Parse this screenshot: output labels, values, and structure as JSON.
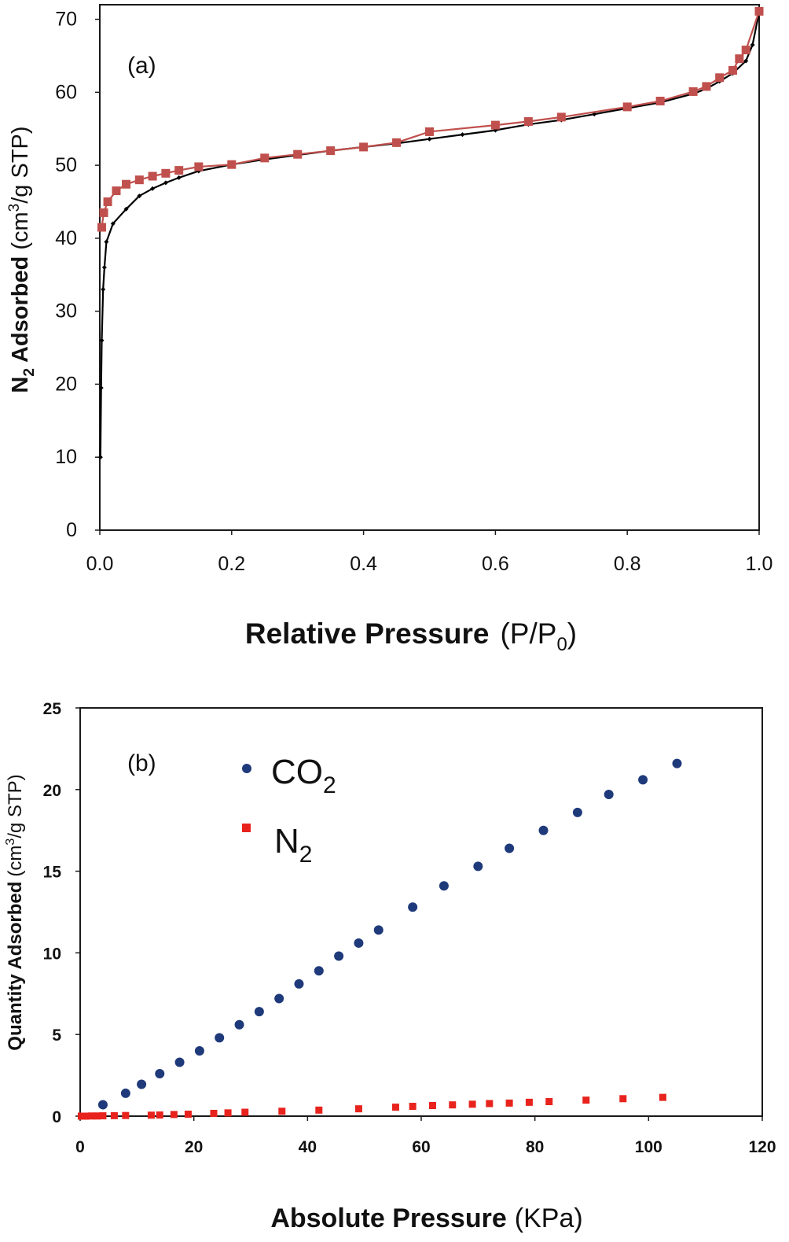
{
  "chart_data": [
    {
      "type": "line",
      "panel_label": "(a)",
      "xlabel": "Relative Pressure",
      "xlabel_unit": "(P/P",
      "xlabel_unit_sub": "0",
      "xlabel_unit_end": ")",
      "ylabel_main": "N",
      "ylabel_sub": "2",
      "ylabel_bold_rest": " Adsorbed",
      "ylabel_unit": " (cm",
      "ylabel_unit_sup": "3",
      "ylabel_unit_end": "/g STP)",
      "xlim": [
        0,
        1.0
      ],
      "ylim": [
        0,
        72
      ],
      "xticks": [
        "0.0",
        "0.2",
        "0.4",
        "0.6",
        "0.8",
        "1.0"
      ],
      "yticks": [
        "0",
        "10",
        "20",
        "30",
        "40",
        "50",
        "60",
        "70"
      ],
      "series": [
        {
          "role": "adsorption",
          "color": "#000000",
          "marker": "diamond",
          "x": [
            0.001,
            0.002,
            0.003,
            0.005,
            0.007,
            0.01,
            0.02,
            0.04,
            0.06,
            0.08,
            0.1,
            0.12,
            0.15,
            0.2,
            0.25,
            0.3,
            0.35,
            0.4,
            0.45,
            0.5,
            0.55,
            0.6,
            0.65,
            0.7,
            0.75,
            0.8,
            0.85,
            0.9,
            0.92,
            0.94,
            0.96,
            0.98,
            0.99,
            1.0
          ],
          "y": [
            10,
            19.5,
            26,
            33,
            36,
            39.5,
            42,
            44,
            45.8,
            46.8,
            47.6,
            48.3,
            49.2,
            50.1,
            50.8,
            51.4,
            52,
            52.5,
            53,
            53.6,
            54.2,
            54.8,
            55.6,
            56.2,
            57,
            57.8,
            58.6,
            59.8,
            60.5,
            61.5,
            62.6,
            64.3,
            66.5,
            71
          ]
        },
        {
          "role": "desorption",
          "color": "#C0504D",
          "marker": "square",
          "x": [
            1.0,
            0.98,
            0.97,
            0.96,
            0.94,
            0.92,
            0.9,
            0.85,
            0.8,
            0.7,
            0.65,
            0.6,
            0.5,
            0.45,
            0.4,
            0.35,
            0.3,
            0.25,
            0.2,
            0.15,
            0.12,
            0.1,
            0.08,
            0.06,
            0.04,
            0.025,
            0.012,
            0.006,
            0.003
          ],
          "y": [
            71.1,
            65.8,
            64.6,
            63,
            62,
            60.8,
            60.1,
            58.8,
            58,
            56.6,
            56,
            55.5,
            54.6,
            53.1,
            52.5,
            52,
            51.5,
            51,
            50.1,
            49.8,
            49.3,
            48.9,
            48.5,
            48,
            47.4,
            46.5,
            45,
            43.5,
            41.5
          ]
        }
      ]
    },
    {
      "type": "scatter",
      "panel_label": "(b)",
      "xlabel": "Absolute Pressure",
      "xlabel_unit": "(KPa)",
      "ylabel_bold": "Quantity Adsorbed",
      "ylabel_unit": "(cm",
      "ylabel_unit_sup": "3",
      "ylabel_unit_end": "/g STP)",
      "xlim": [
        0,
        120
      ],
      "ylim": [
        0,
        25
      ],
      "xticks": [
        "0",
        "20",
        "40",
        "60",
        "80",
        "100",
        "120"
      ],
      "yticks": [
        "0",
        "5",
        "10",
        "15",
        "20",
        "25"
      ],
      "legend_position": "top-left",
      "series": [
        {
          "name": "CO",
          "name_sub": "2",
          "color": "#1F3A7A",
          "marker": "circle",
          "x": [
            4,
            8,
            10.8,
            14,
            17.5,
            21,
            24.5,
            28,
            31.5,
            35,
            38.5,
            42,
            45.5,
            49,
            52.5,
            58.5,
            64,
            70,
            75.5,
            81.5,
            87.5,
            93,
            99,
            105
          ],
          "y": [
            0.7,
            1.4,
            1.95,
            2.6,
            3.3,
            4.0,
            4.8,
            5.6,
            6.4,
            7.2,
            8.1,
            8.9,
            9.8,
            10.6,
            11.4,
            12.8,
            14.1,
            15.3,
            16.4,
            17.5,
            18.6,
            19.7,
            20.6,
            21.6
          ]
        },
        {
          "name": "N",
          "name_sub": "2",
          "color": "#E8231D",
          "marker": "square",
          "x": [
            0.2,
            1,
            2,
            3,
            4,
            6,
            8,
            12.5,
            14,
            16.5,
            19,
            23.5,
            26,
            29,
            35.5,
            42,
            49,
            55.5,
            58.5,
            62,
            65.5,
            69,
            72,
            75.5,
            79,
            82.5,
            89,
            95.5,
            102.5
          ],
          "y": [
            0.0,
            0.0,
            0.01,
            0.01,
            0.02,
            0.03,
            0.04,
            0.06,
            0.07,
            0.1,
            0.12,
            0.17,
            0.2,
            0.24,
            0.3,
            0.37,
            0.45,
            0.55,
            0.6,
            0.65,
            0.69,
            0.73,
            0.77,
            0.8,
            0.85,
            0.89,
            0.98,
            1.07,
            1.15
          ]
        }
      ]
    }
  ]
}
